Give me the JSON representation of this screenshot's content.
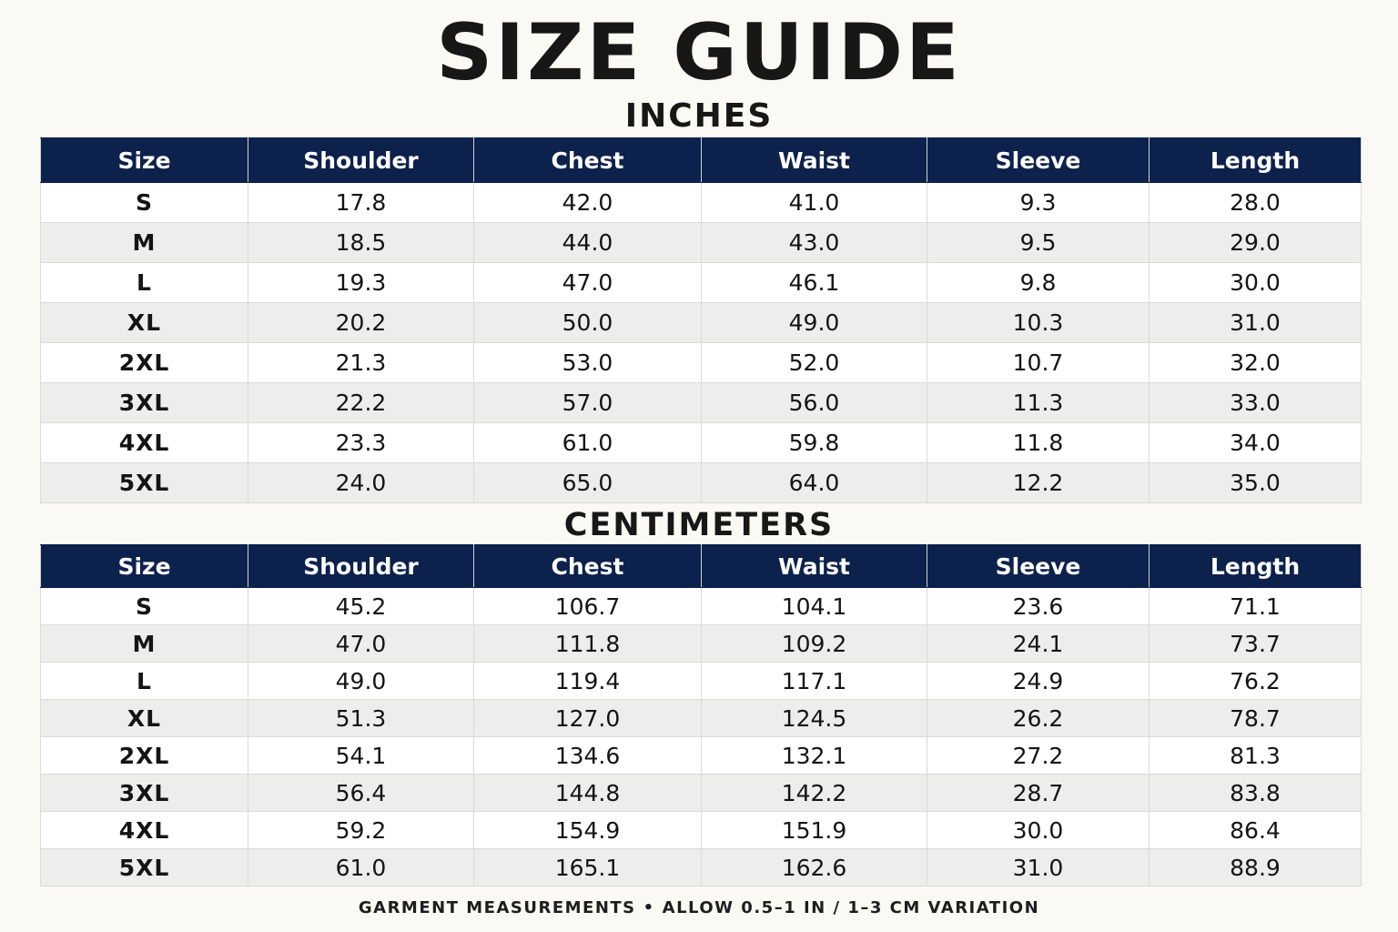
{
  "title": "SIZE GUIDE",
  "columns": [
    "Size",
    "Shoulder",
    "Chest",
    "Waist",
    "Sleeve",
    "Length"
  ],
  "inches": {
    "heading": "INCHES",
    "rows": [
      [
        "S",
        "17.8",
        "42.0",
        "41.0",
        "9.3",
        "28.0"
      ],
      [
        "M",
        "18.5",
        "44.0",
        "43.0",
        "9.5",
        "29.0"
      ],
      [
        "L",
        "19.3",
        "47.0",
        "46.1",
        "9.8",
        "30.0"
      ],
      [
        "XL",
        "20.2",
        "50.0",
        "49.0",
        "10.3",
        "31.0"
      ],
      [
        "2XL",
        "21.3",
        "53.0",
        "52.0",
        "10.7",
        "32.0"
      ],
      [
        "3XL",
        "22.2",
        "57.0",
        "56.0",
        "11.3",
        "33.0"
      ],
      [
        "4XL",
        "23.3",
        "61.0",
        "59.8",
        "11.8",
        "34.0"
      ],
      [
        "5XL",
        "24.0",
        "65.0",
        "64.0",
        "12.2",
        "35.0"
      ]
    ]
  },
  "centimeters": {
    "heading": "CENTIMETERS",
    "rows": [
      [
        "S",
        "45.2",
        "106.7",
        "104.1",
        "23.6",
        "71.1"
      ],
      [
        "M",
        "47.0",
        "111.8",
        "109.2",
        "24.1",
        "73.7"
      ],
      [
        "L",
        "49.0",
        "119.4",
        "117.1",
        "24.9",
        "76.2"
      ],
      [
        "XL",
        "51.3",
        "127.0",
        "124.5",
        "26.2",
        "78.7"
      ],
      [
        "2XL",
        "54.1",
        "134.6",
        "132.1",
        "27.2",
        "81.3"
      ],
      [
        "3XL",
        "56.4",
        "144.8",
        "142.2",
        "28.7",
        "83.8"
      ],
      [
        "4XL",
        "59.2",
        "154.9",
        "151.9",
        "30.0",
        "86.4"
      ],
      [
        "5XL",
        "61.0",
        "165.1",
        "162.6",
        "31.0",
        "88.9"
      ]
    ]
  },
  "footer": {
    "left": "GARMENT MEASUREMENTS",
    "separator": "•",
    "right": "ALLOW 0.5–1 IN / 1–3 CM VARIATION"
  },
  "colors": {
    "header_background": "#0c214b",
    "header_text": "#ffffff",
    "page_background": "#fbf9f4",
    "alternate_row": "#ededeb"
  }
}
